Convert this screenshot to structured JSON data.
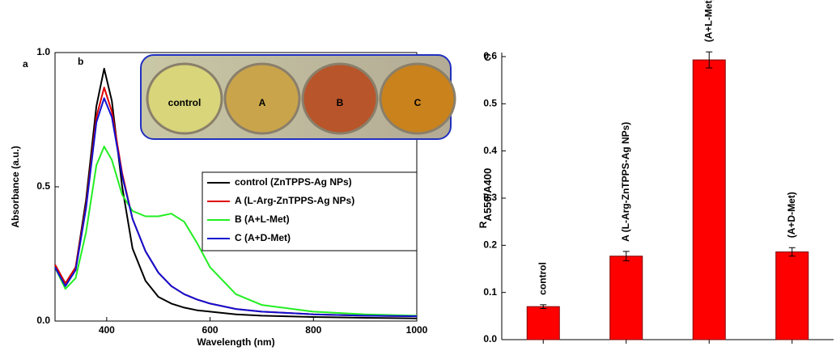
{
  "chart_data": [
    {
      "type": "line",
      "panel_labels": [
        "a",
        "b"
      ],
      "x_label": "Wavelength (nm)",
      "y_label": "Absorbance (a.u.)",
      "inset_labels": [
        "control",
        "A",
        "B",
        "C"
      ],
      "x": [
        300,
        320,
        340,
        360,
        380,
        395,
        410,
        430,
        450,
        475,
        500,
        525,
        550,
        575,
        600,
        650,
        700,
        800,
        900,
        1000
      ],
      "series": [
        {
          "name": "control (ZnTPPS-Ag NPs)",
          "color": "#000000",
          "values": [
            0.21,
            0.14,
            0.2,
            0.45,
            0.8,
            0.94,
            0.82,
            0.5,
            0.27,
            0.15,
            0.09,
            0.065,
            0.05,
            0.04,
            0.035,
            0.025,
            0.02,
            0.015,
            0.012,
            0.01
          ]
        },
        {
          "name": "A (L-Arg-ZnTPPS-Ag NPs)",
          "color": "#e00000",
          "values": [
            0.21,
            0.14,
            0.2,
            0.43,
            0.76,
            0.87,
            0.78,
            0.55,
            0.38,
            0.26,
            0.18,
            0.13,
            0.1,
            0.08,
            0.065,
            0.045,
            0.035,
            0.025,
            0.02,
            0.018
          ]
        },
        {
          "name": "B (A+L-Met)",
          "color": "#22ee22",
          "values": [
            0.2,
            0.12,
            0.16,
            0.33,
            0.58,
            0.65,
            0.6,
            0.47,
            0.41,
            0.39,
            0.39,
            0.4,
            0.37,
            0.29,
            0.2,
            0.1,
            0.06,
            0.035,
            0.025,
            0.02
          ]
        },
        {
          "name": "C (A+D-Met)",
          "color": "#1010d0",
          "values": [
            0.2,
            0.13,
            0.19,
            0.42,
            0.74,
            0.83,
            0.76,
            0.54,
            0.38,
            0.26,
            0.18,
            0.13,
            0.1,
            0.08,
            0.065,
            0.045,
            0.035,
            0.025,
            0.02,
            0.018
          ]
        }
      ],
      "xlim": [
        300,
        1000
      ],
      "xticks": [
        400,
        600,
        800,
        1000
      ],
      "ylim": [
        0,
        1.0
      ],
      "yticks": [
        {
          "value": 0,
          "label": "0.0"
        },
        0.5,
        {
          "value": 1,
          "label": "1.0"
        }
      ],
      "legend": "right"
    },
    {
      "type": "bar",
      "panel_labels": [
        "C"
      ],
      "y_label": "R",
      "y_label_sub": "A550/A400",
      "categories": [
        "control",
        "A (L-Arg-ZnTPPS-Ag NPs)",
        "(A+L-Met)",
        "(A+D-Met)"
      ],
      "values": [
        0.07,
        0.177,
        0.593,
        0.186
      ],
      "errors": [
        0.004,
        0.01,
        0.017,
        0.009
      ],
      "color": "#ff0000",
      "ylim": [
        0,
        0.6
      ],
      "yticks": [
        {
          "value": 0,
          "label": "0.0"
        },
        0.1,
        0.2,
        0.3,
        0.4,
        0.5,
        0.6
      ]
    }
  ]
}
